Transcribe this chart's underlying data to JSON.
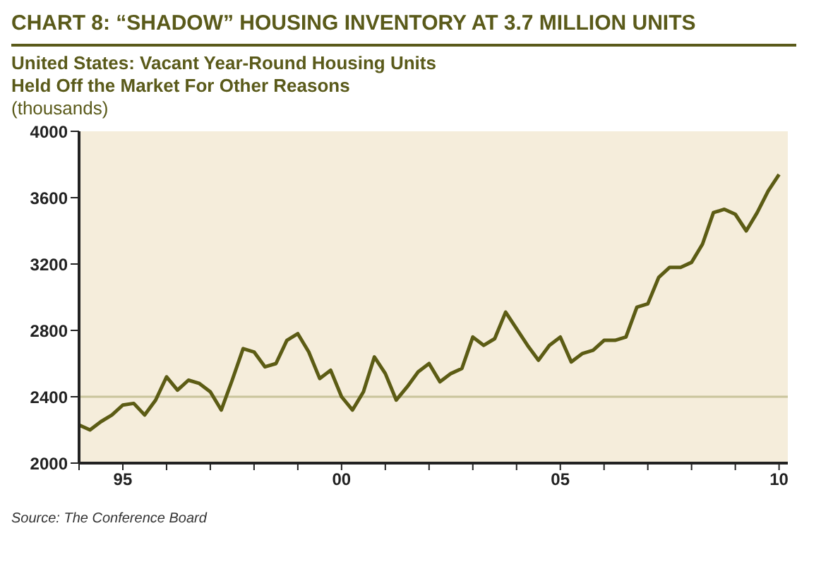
{
  "chart_data": {
    "type": "line",
    "title": "CHART 8: “SHADOW” HOUSING INVENTORY AT 3.7 MILLION UNITS",
    "subtitle": "United States: Vacant Year-Round Housing Units\nHeld Off the Market For Other Reasons",
    "ylabel": "(thousands)",
    "x": [
      1994,
      1994.25,
      1994.5,
      1994.75,
      1995,
      1995.25,
      1995.5,
      1995.75,
      1996,
      1996.25,
      1996.5,
      1996.75,
      1997,
      1997.25,
      1997.5,
      1997.75,
      1998,
      1998.25,
      1998.5,
      1998.75,
      1999,
      1999.25,
      1999.5,
      1999.75,
      2000,
      2000.25,
      2000.5,
      2000.75,
      2001,
      2001.25,
      2001.5,
      2001.75,
      2002,
      2002.25,
      2002.5,
      2002.75,
      2003,
      2003.25,
      2003.5,
      2003.75,
      2004,
      2004.25,
      2004.5,
      2004.75,
      2005,
      2005.25,
      2005.5,
      2005.75,
      2006,
      2006.25,
      2006.5,
      2006.75,
      2007,
      2007.25,
      2007.5,
      2007.75,
      2008,
      2008.25,
      2008.5,
      2008.75,
      2009,
      2009.25,
      2009.5,
      2009.75,
      2010
    ],
    "series": [
      {
        "color": "#5c5c14",
        "values": [
          2230,
          2200,
          2250,
          2290,
          2350,
          2360,
          2290,
          2380,
          2520,
          2440,
          2500,
          2480,
          2430,
          2320,
          2500,
          2690,
          2670,
          2580,
          2600,
          2740,
          2780,
          2670,
          2510,
          2560,
          2400,
          2320,
          2430,
          2640,
          2540,
          2380,
          2460,
          2550,
          2600,
          2490,
          2540,
          2570,
          2760,
          2710,
          2750,
          2910,
          2810,
          2710,
          2620,
          2710,
          2760,
          2610,
          2660,
          2680,
          2740,
          2740,
          2760,
          2940,
          2960,
          3120,
          3180,
          3180,
          3210,
          3320,
          3510,
          3530,
          3500,
          3400,
          3510,
          3640,
          3740
        ]
      }
    ],
    "xlim": [
      1994,
      2010.2
    ],
    "xticks": [
      {
        "value": 1994,
        "label": null
      },
      {
        "value": 1995,
        "label": "95"
      },
      {
        "value": 1996,
        "label": null
      },
      {
        "value": 1997,
        "label": null
      },
      {
        "value": 1998,
        "label": null
      },
      {
        "value": 1999,
        "label": null
      },
      {
        "value": 2000,
        "label": "00"
      },
      {
        "value": 2001,
        "label": null
      },
      {
        "value": 2002,
        "label": null
      },
      {
        "value": 2003,
        "label": null
      },
      {
        "value": 2004,
        "label": null
      },
      {
        "value": 2005,
        "label": "05"
      },
      {
        "value": 2006,
        "label": null
      },
      {
        "value": 2007,
        "label": null
      },
      {
        "value": 2008,
        "label": null
      },
      {
        "value": 2009,
        "label": null
      },
      {
        "value": 2010,
        "label": "10"
      }
    ],
    "ylim": [
      2000,
      4000
    ],
    "yticks": [
      2000,
      2400,
      2800,
      3200,
      3600,
      4000
    ],
    "ref_lines": [
      {
        "axis": "y",
        "value": 2400,
        "color": "#c9c49c"
      }
    ],
    "annotations": [
      "Source: The Conference Board"
    ],
    "grid": false,
    "legend": false,
    "marker": "none",
    "line_style": "solid"
  }
}
